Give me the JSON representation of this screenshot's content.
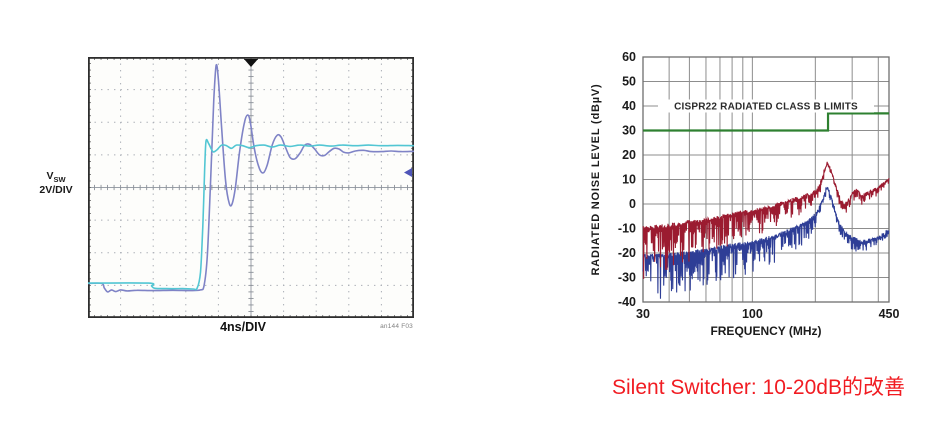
{
  "page": {
    "background": "#ffffff"
  },
  "caption": {
    "text": "Silent Switcher: 10-20dB的改善",
    "color": "#f11c22"
  },
  "chart_data": [
    {
      "id": "vsw-oscillogram",
      "type": "line",
      "channel_main": "V",
      "channel_sub": "SW",
      "scale_label": "2V/DIV",
      "timebase_label": "4ns/DIV",
      "watermark": "an144 F03",
      "x_divisions": 10,
      "y_divisions": 8,
      "x_units_per_div": "4ns",
      "y_units_per_div": "2V",
      "grid": "dotted",
      "trigger_marker_x_div": 5,
      "level_marker_y_div": 4.46,
      "marker_color": "#4f55b8",
      "series": [
        {
          "name": "trace-purple-ringing",
          "color": "#7f83c6",
          "points_div": [
            [
              0,
              1.06
            ],
            [
              0.42,
              1.06
            ],
            [
              0.5,
              0.92
            ],
            [
              0.6,
              0.8
            ],
            [
              0.72,
              0.86
            ],
            [
              0.85,
              0.81
            ],
            [
              1.0,
              0.86
            ],
            [
              1.2,
              0.83
            ],
            [
              1.5,
              0.85
            ],
            [
              2.0,
              0.84
            ],
            [
              2.6,
              0.85
            ],
            [
              3.1,
              0.84
            ],
            [
              3.45,
              0.86
            ],
            [
              3.56,
              1.0
            ],
            [
              3.66,
              1.9
            ],
            [
              3.76,
              4.2
            ],
            [
              3.86,
              6.7
            ],
            [
              3.93,
              7.74
            ],
            [
              4.0,
              7.3
            ],
            [
              4.1,
              5.8
            ],
            [
              4.22,
              4.2
            ],
            [
              4.33,
              3.52
            ],
            [
              4.42,
              3.5
            ],
            [
              4.52,
              4.0
            ],
            [
              4.65,
              5.1
            ],
            [
              4.8,
              6.0
            ],
            [
              4.9,
              6.22
            ],
            [
              4.98,
              6.0
            ],
            [
              5.1,
              5.2
            ],
            [
              5.25,
              4.6
            ],
            [
              5.38,
              4.45
            ],
            [
              5.5,
              4.7
            ],
            [
              5.65,
              5.3
            ],
            [
              5.8,
              5.6
            ],
            [
              5.92,
              5.55
            ],
            [
              6.05,
              5.25
            ],
            [
              6.2,
              4.92
            ],
            [
              6.35,
              4.88
            ],
            [
              6.5,
              5.05
            ],
            [
              6.65,
              5.3
            ],
            [
              6.8,
              5.32
            ],
            [
              6.95,
              5.18
            ],
            [
              7.1,
              5.0
            ],
            [
              7.25,
              4.98
            ],
            [
              7.4,
              5.1
            ],
            [
              7.55,
              5.2
            ],
            [
              7.7,
              5.18
            ],
            [
              7.85,
              5.08
            ],
            [
              8.0,
              5.06
            ],
            [
              8.2,
              5.12
            ],
            [
              8.45,
              5.14
            ],
            [
              8.7,
              5.1
            ],
            [
              9.0,
              5.1
            ],
            [
              9.3,
              5.12
            ],
            [
              9.6,
              5.1
            ],
            [
              10,
              5.11
            ]
          ]
        },
        {
          "name": "trace-cyan-clean",
          "color": "#52c6d3",
          "points_div": [
            [
              0,
              1.07
            ],
            [
              1.85,
              1.07
            ],
            [
              1.95,
              0.98
            ],
            [
              2.05,
              0.91
            ],
            [
              2.4,
              0.9
            ],
            [
              2.9,
              0.9
            ],
            [
              3.22,
              0.89
            ],
            [
              3.35,
              0.92
            ],
            [
              3.45,
              1.4
            ],
            [
              3.52,
              2.8
            ],
            [
              3.58,
              4.6
            ],
            [
              3.62,
              5.42
            ],
            [
              3.7,
              5.35
            ],
            [
              3.83,
              5.1
            ],
            [
              3.95,
              5.15
            ],
            [
              4.1,
              5.3
            ],
            [
              4.25,
              5.28
            ],
            [
              4.4,
              5.2
            ],
            [
              4.55,
              5.3
            ],
            [
              4.75,
              5.28
            ],
            [
              4.95,
              5.22
            ],
            [
              5.15,
              5.28
            ],
            [
              5.4,
              5.3
            ],
            [
              5.65,
              5.24
            ],
            [
              5.9,
              5.3
            ],
            [
              6.2,
              5.26
            ],
            [
              6.5,
              5.3
            ],
            [
              6.8,
              5.27
            ],
            [
              7.1,
              5.3
            ],
            [
              7.45,
              5.27
            ],
            [
              7.8,
              5.3
            ],
            [
              8.2,
              5.28
            ],
            [
              8.6,
              5.3
            ],
            [
              9.0,
              5.28
            ],
            [
              9.5,
              5.29
            ],
            [
              10,
              5.28
            ]
          ]
        }
      ]
    },
    {
      "id": "radiated-emi",
      "type": "line",
      "xlabel": "FREQUENCY (MHz)",
      "ylabel": "RADIATED NOISE LEVEL (dBµV)",
      "xscale": "log",
      "xlim": [
        30,
        450
      ],
      "ylim": [
        -40,
        60
      ],
      "yticks": [
        60,
        50,
        40,
        30,
        20,
        10,
        0,
        -10,
        -20,
        -30,
        -40
      ],
      "xticks": [
        {
          "value": 30,
          "label": "30"
        },
        {
          "value": 100,
          "label": "100"
        },
        {
          "value": 450,
          "label": "450"
        }
      ],
      "xgridlines": [
        30,
        40,
        50,
        60,
        70,
        80,
        90,
        100,
        200,
        300,
        400,
        450
      ],
      "grid": true,
      "limit_line": {
        "label": "CISPR22 RADIATED CLASS B LIMITS",
        "color": "#2e8030",
        "points_mhz_db": [
          [
            30,
            30
          ],
          [
            230,
            30
          ],
          [
            230,
            37
          ],
          [
            450,
            37
          ]
        ]
      },
      "series": [
        {
          "name": "trace-red-noisy",
          "color": "#9b1b30",
          "envelope_mhz_db": [
            [
              30,
              -9
            ],
            [
              40,
              -8
            ],
            [
              50,
              -6.5
            ],
            [
              60,
              -5.5
            ],
            [
              70,
              -4.5
            ],
            [
              80,
              -3.5
            ],
            [
              90,
              -2.5
            ],
            [
              100,
              -2
            ],
            [
              115,
              -1
            ],
            [
              130,
              0.5
            ],
            [
              150,
              2
            ],
            [
              170,
              3.5
            ],
            [
              190,
              5
            ],
            [
              205,
              7
            ],
            [
              215,
              11
            ],
            [
              222,
              15
            ],
            [
              228,
              17.5
            ],
            [
              235,
              15.5
            ],
            [
              245,
              11
            ],
            [
              255,
              6
            ],
            [
              265,
              2
            ],
            [
              275,
              0.5
            ],
            [
              290,
              2.5
            ],
            [
              305,
              6
            ],
            [
              315,
              7
            ],
            [
              330,
              4
            ],
            [
              345,
              4.5
            ],
            [
              360,
              5.5
            ],
            [
              380,
              6.5
            ],
            [
              400,
              7.5
            ],
            [
              425,
              9
            ],
            [
              450,
              11.5
            ]
          ],
          "spike_depth_db": [
            [
              30,
              22
            ],
            [
              45,
              18
            ],
            [
              60,
              15
            ],
            [
              80,
              13
            ],
            [
              100,
              11
            ],
            [
              130,
              9
            ],
            [
              160,
              8
            ],
            [
              190,
              6
            ],
            [
              215,
              4
            ],
            [
              230,
              2.5
            ],
            [
              245,
              3
            ],
            [
              260,
              4
            ],
            [
              290,
              5
            ],
            [
              330,
              4
            ],
            [
              380,
              3.5
            ],
            [
              450,
              3
            ]
          ]
        },
        {
          "name": "trace-blue-noisy",
          "color": "#2e3e96",
          "envelope_mhz_db": [
            [
              30,
              -20.5
            ],
            [
              40,
              -20
            ],
            [
              50,
              -19
            ],
            [
              60,
              -18
            ],
            [
              70,
              -17
            ],
            [
              80,
              -16
            ],
            [
              90,
              -15.5
            ],
            [
              100,
              -15
            ],
            [
              115,
              -13.5
            ],
            [
              130,
              -12
            ],
            [
              150,
              -10
            ],
            [
              170,
              -8
            ],
            [
              190,
              -5.5
            ],
            [
              205,
              -2.5
            ],
            [
              215,
              2
            ],
            [
              222,
              5.5
            ],
            [
              228,
              7.5
            ],
            [
              235,
              5
            ],
            [
              245,
              0
            ],
            [
              255,
              -5
            ],
            [
              265,
              -8.5
            ],
            [
              280,
              -11
            ],
            [
              300,
              -13
            ],
            [
              320,
              -14
            ],
            [
              340,
              -14.5
            ],
            [
              360,
              -14
            ],
            [
              380,
              -13.5
            ],
            [
              400,
              -13
            ],
            [
              425,
              -11.5
            ],
            [
              450,
              -9.5
            ]
          ],
          "spike_depth_db": [
            [
              30,
              19
            ],
            [
              45,
              17
            ],
            [
              60,
              15
            ],
            [
              80,
              14
            ],
            [
              100,
              13
            ],
            [
              130,
              12
            ],
            [
              160,
              10
            ],
            [
              190,
              8
            ],
            [
              215,
              5
            ],
            [
              230,
              3
            ],
            [
              245,
              4
            ],
            [
              260,
              5
            ],
            [
              290,
              5.5
            ],
            [
              330,
              5
            ],
            [
              380,
              4.5
            ],
            [
              450,
              4
            ]
          ]
        }
      ]
    }
  ]
}
